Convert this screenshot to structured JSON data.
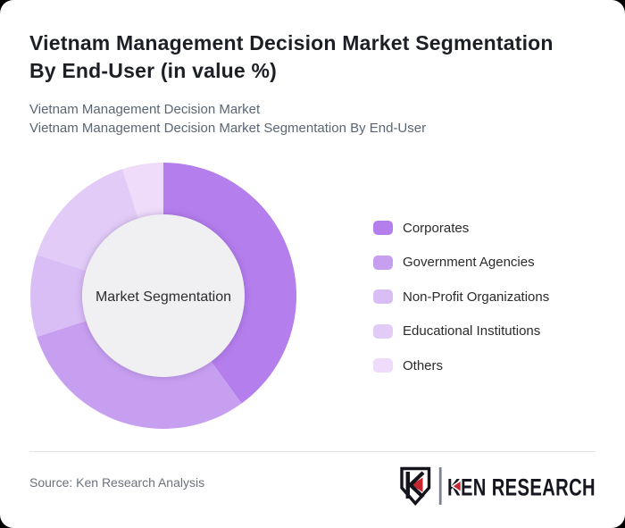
{
  "window": {
    "background_color": "#000000",
    "card_color": "#ffffff"
  },
  "header": {
    "title_line1": "Vietnam Management Decision Market Segmentation",
    "title_line2": "By End-User (in value %)",
    "subtitle_line1": "Vietnam Management Decision Market",
    "subtitle_line2": "Vietnam Management Decision Market Segmentation By End-User"
  },
  "chart_data": {
    "type": "pie",
    "variant": "donut",
    "title": "Vietnam Management Decision Market Segmentation By End-User (in value %)",
    "center_label": "Market Segmentation",
    "value_unit": "%",
    "categories": [
      "Corporates",
      "Government Agencies",
      "Non-Profit Organizations",
      "Educational Institutions",
      "Others"
    ],
    "values": [
      40,
      30,
      10,
      15,
      5
    ],
    "colors": [
      "#b47eed",
      "#c79ff0",
      "#d9bdf5",
      "#e2ccf7",
      "#eedcfa"
    ],
    "hole_color": "#f0eff1",
    "center_label_color": "#2d2d2d",
    "inner_radius_ratio": 0.61,
    "start_angle_deg": 0,
    "direction": "clockwise",
    "legend_position": "right"
  },
  "footer": {
    "source": "Source: Ken Research Analysis",
    "logo": {
      "brand": "KEN RESEARCH",
      "text_color": "#15161f",
      "accent_color": "#c5252c",
      "divider_color": "#7a828c"
    }
  }
}
